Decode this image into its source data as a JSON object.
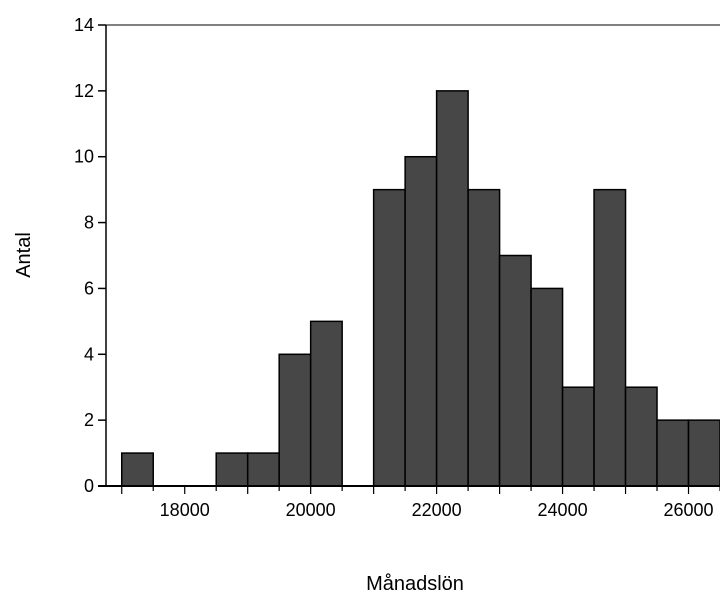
{
  "chart_data": {
    "type": "bar",
    "subtype": "histogram",
    "xlabel": "Månadslön",
    "ylabel": "Antal",
    "bin_width": 500,
    "bins": [
      {
        "x0": 17000,
        "x1": 17500,
        "value": 1
      },
      {
        "x0": 17500,
        "x1": 18000,
        "value": 0
      },
      {
        "x0": 18000,
        "x1": 18500,
        "value": 0
      },
      {
        "x0": 18500,
        "x1": 19000,
        "value": 1
      },
      {
        "x0": 19000,
        "x1": 19500,
        "value": 1
      },
      {
        "x0": 19500,
        "x1": 20000,
        "value": 4
      },
      {
        "x0": 20000,
        "x1": 20500,
        "value": 5
      },
      {
        "x0": 20500,
        "x1": 21000,
        "value": 0
      },
      {
        "x0": 21000,
        "x1": 21500,
        "value": 9
      },
      {
        "x0": 21500,
        "x1": 22000,
        "value": 10
      },
      {
        "x0": 22000,
        "x1": 22500,
        "value": 12
      },
      {
        "x0": 22500,
        "x1": 23000,
        "value": 9
      },
      {
        "x0": 23000,
        "x1": 23500,
        "value": 7
      },
      {
        "x0": 23500,
        "x1": 24000,
        "value": 6
      },
      {
        "x0": 24000,
        "x1": 24500,
        "value": 3
      },
      {
        "x0": 24500,
        "x1": 25000,
        "value": 9
      },
      {
        "x0": 25000,
        "x1": 25500,
        "value": 3
      },
      {
        "x0": 25500,
        "x1": 26000,
        "value": 2
      },
      {
        "x0": 26000,
        "x1": 26500,
        "value": 2
      }
    ],
    "xlim": [
      16750,
      26500
    ],
    "ylim": [
      0,
      14
    ],
    "x_ticks": [
      "18000",
      "20000",
      "22000",
      "24000",
      "26000"
    ],
    "y_ticks": [
      "0",
      "2",
      "4",
      "6",
      "8",
      "10",
      "12",
      "14"
    ],
    "grid": false,
    "legend": "none",
    "bar_color": "#474747",
    "edge_color": "#000000"
  }
}
